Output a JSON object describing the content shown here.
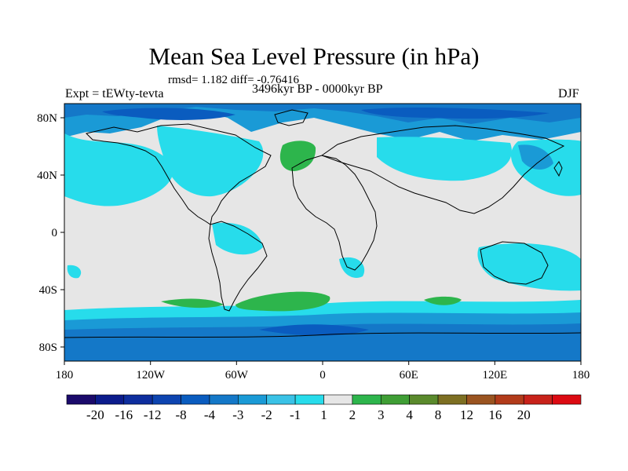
{
  "figure": {
    "title": "Mean Sea Level Pressure (in hPa)",
    "stats": "rmsd= 1.182 diff= -0.76416",
    "experiment": "Expt = tEWty-tevta",
    "period": "3496kyr BP - 0000kyr BP",
    "season": "DJF"
  },
  "axes": {
    "x_ticks": [
      "180",
      "120W",
      "60W",
      "0",
      "60E",
      "120E",
      "180"
    ],
    "y_ticks": [
      "80N",
      "40N",
      "0",
      "40S",
      "80S"
    ],
    "x_values": [
      -180,
      -120,
      -60,
      0,
      60,
      120,
      180
    ],
    "y_values": [
      80,
      40,
      0,
      -40,
      -80
    ],
    "lon_range": [
      -180,
      180
    ],
    "lat_range": [
      -90,
      90
    ]
  },
  "colorbar": {
    "labels": [
      "-20",
      "-16",
      "-12",
      "-8",
      "-4",
      "-3",
      "-2",
      "-1",
      "1",
      "2",
      "3",
      "4",
      "8",
      "12",
      "16",
      "20"
    ],
    "colors": [
      "#1b0a6b",
      "#0c1c8c",
      "#0e2e9e",
      "#0d44b0",
      "#0a5cbf",
      "#1478c8",
      "#1a9ad6",
      "#3ac2e6",
      "#27dceb",
      "#e6e6e6",
      "#2db54c",
      "#3f9e35",
      "#5a8a2c",
      "#7d6f22",
      "#9a5420",
      "#b23b1a",
      "#c8221a",
      "#dc0a12"
    ]
  },
  "legend_colors": {
    "land_neutral": "#e6e6e6",
    "minus_one_to_two": "#27dceb",
    "minus_two_to_three": "#1a9ad6",
    "minus_three_to_four": "#1478c8",
    "minus_four_to_eight": "#0a5cbf",
    "one_to_two": "#2db54c",
    "coast": "#000000"
  }
}
